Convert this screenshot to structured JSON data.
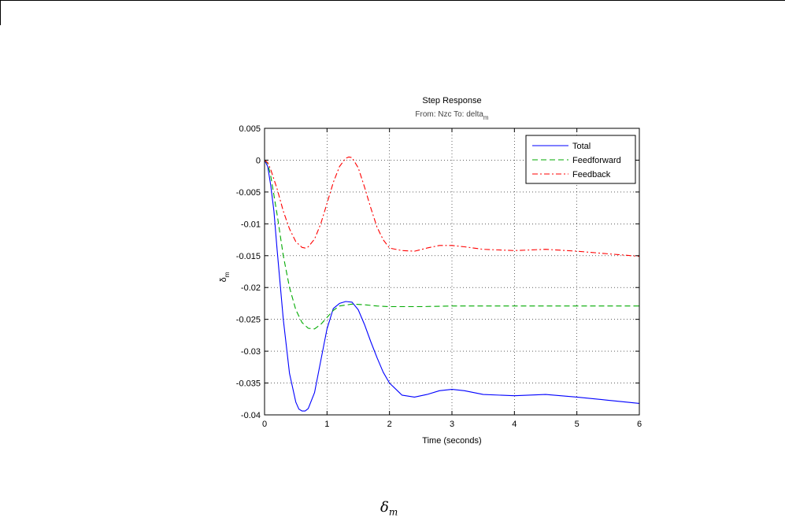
{
  "caption": {
    "symbol": "δ",
    "subscript": "m"
  },
  "chart_data": {
    "type": "line",
    "title": "Step Response",
    "subtitle": "From: Nzc  To: delta",
    "subtitle_subscript": "m",
    "xlabel": "Time (seconds)",
    "ylabel": "δ",
    "ylabel_subscript": "m",
    "xlim": [
      0,
      6
    ],
    "ylim": [
      -0.04,
      0.005
    ],
    "xticks": [
      0,
      1,
      2,
      3,
      4,
      5,
      6
    ],
    "xtick_labels": [
      "0",
      "1",
      "2",
      "3",
      "4",
      "5",
      "6"
    ],
    "yticks": [
      0.005,
      0,
      -0.005,
      -0.01,
      -0.015,
      -0.02,
      -0.025,
      -0.03,
      -0.035,
      -0.04
    ],
    "ytick_labels": [
      "0.005",
      "0",
      "-0.005",
      "-0.01",
      "-0.015",
      "-0.02",
      "-0.025",
      "-0.03",
      "-0.035",
      "-0.04"
    ],
    "grid": true,
    "legend_position": "top-right",
    "series": [
      {
        "name": "Total",
        "color": "#0000ff",
        "dash": "solid",
        "x": [
          0,
          0.05,
          0.1,
          0.15,
          0.2,
          0.3,
          0.4,
          0.5,
          0.55,
          0.6,
          0.65,
          0.7,
          0.8,
          0.9,
          1.0,
          1.1,
          1.2,
          1.3,
          1.4,
          1.5,
          1.6,
          1.7,
          1.8,
          1.9,
          2.0,
          2.2,
          2.4,
          2.6,
          2.8,
          3.0,
          3.2,
          3.5,
          4.0,
          4.5,
          5.0,
          5.5,
          6.0
        ],
        "y": [
          0,
          -0.001,
          -0.004,
          -0.008,
          -0.014,
          -0.025,
          -0.0335,
          -0.038,
          -0.0391,
          -0.0394,
          -0.0394,
          -0.039,
          -0.0365,
          -0.0315,
          -0.0265,
          -0.0233,
          -0.0225,
          -0.0222,
          -0.0223,
          -0.0235,
          -0.0258,
          -0.0285,
          -0.031,
          -0.0333,
          -0.035,
          -0.0369,
          -0.0372,
          -0.0368,
          -0.0362,
          -0.036,
          -0.0362,
          -0.0368,
          -0.037,
          -0.0368,
          -0.0372,
          -0.0377,
          -0.0382
        ]
      },
      {
        "name": "Feedforward",
        "color": "#00aa00",
        "dash": "dashed",
        "x": [
          0,
          0.05,
          0.1,
          0.2,
          0.3,
          0.4,
          0.5,
          0.6,
          0.7,
          0.8,
          0.9,
          1.0,
          1.1,
          1.2,
          1.4,
          1.6,
          1.8,
          2.0,
          2.5,
          3.0,
          4.0,
          5.0,
          6.0
        ],
        "y": [
          0,
          -0.0005,
          -0.0025,
          -0.0085,
          -0.015,
          -0.02,
          -0.0235,
          -0.0255,
          -0.0264,
          -0.0265,
          -0.0258,
          -0.0247,
          -0.0236,
          -0.0229,
          -0.0226,
          -0.0227,
          -0.0229,
          -0.023,
          -0.023,
          -0.0229,
          -0.0229,
          -0.0229,
          -0.0229
        ]
      },
      {
        "name": "Feedback",
        "color": "#ff0000",
        "dash": "dashdot",
        "x": [
          0,
          0.05,
          0.1,
          0.2,
          0.3,
          0.4,
          0.5,
          0.6,
          0.65,
          0.7,
          0.8,
          0.9,
          1.0,
          1.1,
          1.2,
          1.3,
          1.35,
          1.4,
          1.5,
          1.6,
          1.7,
          1.8,
          1.9,
          2.0,
          2.2,
          2.4,
          2.6,
          2.8,
          3.0,
          3.2,
          3.5,
          4.0,
          4.5,
          5.0,
          5.5,
          6.0
        ],
        "y": [
          0,
          -0.0004,
          -0.0015,
          -0.0045,
          -0.008,
          -0.0108,
          -0.0128,
          -0.0137,
          -0.0138,
          -0.0136,
          -0.0124,
          -0.01,
          -0.0068,
          -0.0035,
          -0.001,
          0.0003,
          0.0005,
          0.0004,
          -0.0012,
          -0.0042,
          -0.0075,
          -0.0105,
          -0.0125,
          -0.0138,
          -0.0142,
          -0.0143,
          -0.0138,
          -0.0134,
          -0.0134,
          -0.0136,
          -0.014,
          -0.0142,
          -0.014,
          -0.0143,
          -0.0147,
          -0.0151
        ]
      }
    ]
  }
}
